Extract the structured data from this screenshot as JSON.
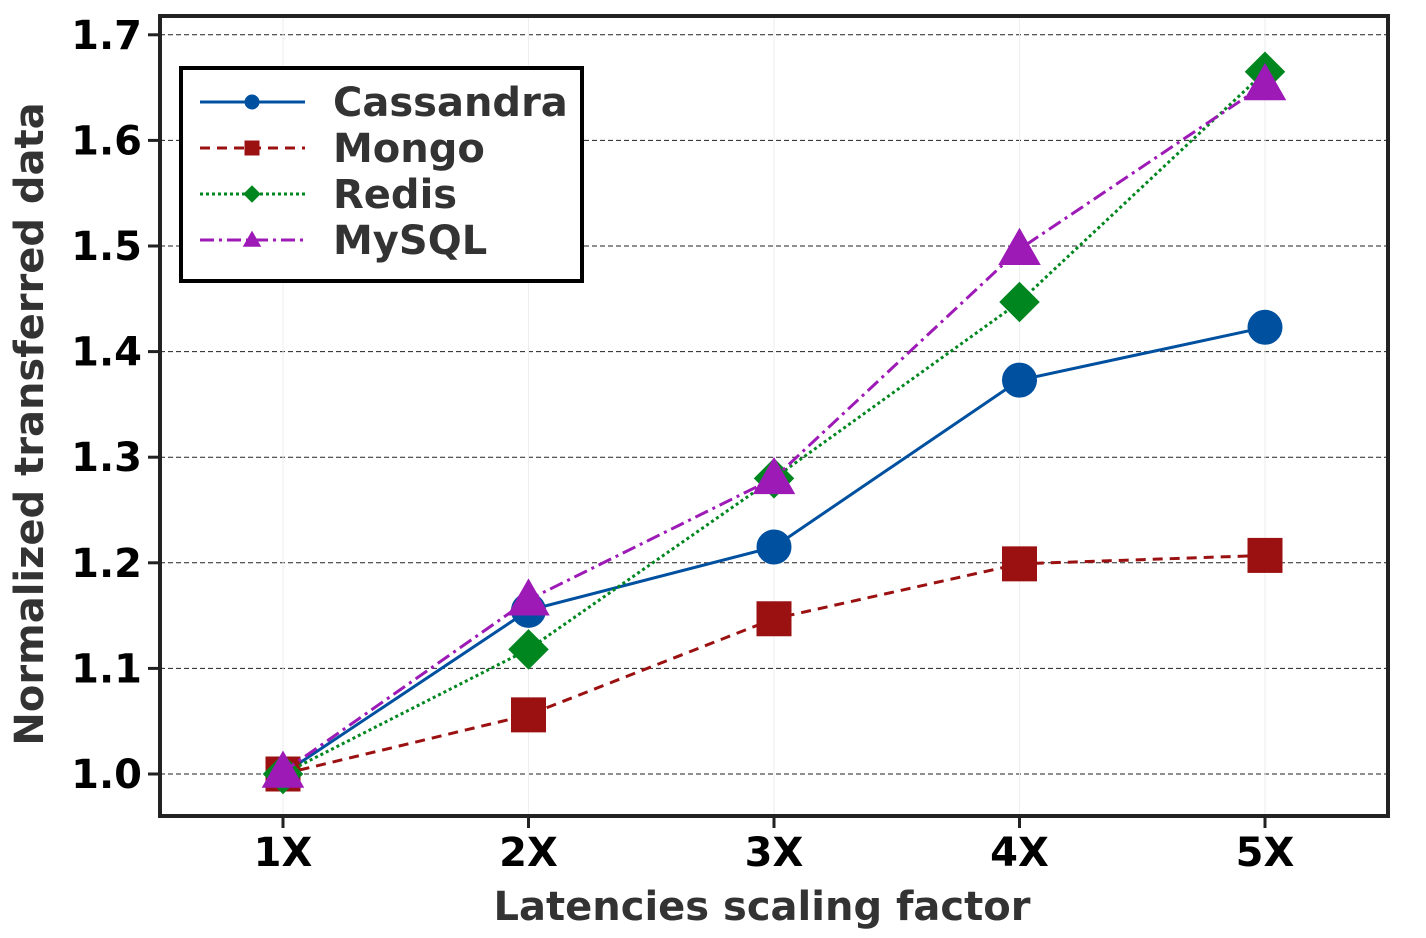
{
  "chart_data": {
    "type": "line",
    "title": "",
    "xlabel": "Latencies scaling  factor",
    "ylabel": "Normalized transferred data",
    "categories": [
      "1X",
      "2X",
      "3X",
      "4X",
      "5X"
    ],
    "ylim": [
      0.94,
      1.71
    ],
    "yticks": [
      1.0,
      1.1,
      1.2,
      1.3,
      1.4,
      1.5,
      1.6,
      1.7
    ],
    "ytick_labels": [
      "1.0",
      "1.1",
      "1.2",
      "1.3",
      "1.4",
      "1.5",
      "1.6",
      "1.7"
    ],
    "grid": "horizontal dashed",
    "legend_position": "top-left",
    "series": [
      {
        "name": "Cassandra",
        "values": [
          1.0,
          1.155,
          1.215,
          1.373,
          1.423
        ],
        "color": "#0050a0",
        "marker": "circle",
        "linestyle": "solid"
      },
      {
        "name": "Mongo",
        "values": [
          1.0,
          1.056,
          1.147,
          1.199,
          1.207
        ],
        "color": "#9b1111",
        "marker": "square",
        "linestyle": "dashed"
      },
      {
        "name": "Redis",
        "values": [
          1.0,
          1.118,
          1.28,
          1.447,
          1.665
        ],
        "color": "#00861f",
        "marker": "diamond",
        "linestyle": "dotted"
      },
      {
        "name": "MySQL",
        "values": [
          1.002,
          1.165,
          1.28,
          1.497,
          1.653
        ],
        "color": "#9d1ab7",
        "marker": "triangle",
        "linestyle": "dashdot"
      }
    ]
  }
}
